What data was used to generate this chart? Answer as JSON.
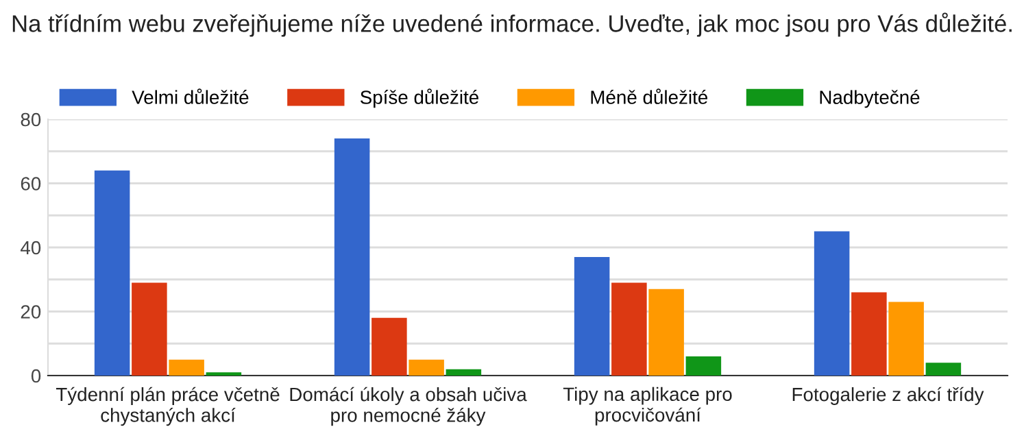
{
  "chart_data": {
    "type": "bar",
    "title": "Na třídním webu zveřejňujeme níže uvedené informace. Uveďte, jak moc jsou pro Vás důležité.",
    "categories": [
      "Týdenní plán práce včetně\nchystaných akcí",
      "Domácí úkoly a obsah učiva\npro nemocné žáky",
      "Tipy na aplikace pro\nprocvičování",
      "Fotogalerie z akcí třídy"
    ],
    "series": [
      {
        "name": "Velmi důležité",
        "color": "#3366cc",
        "values": [
          64,
          74,
          37,
          45
        ]
      },
      {
        "name": "Spíše důležité",
        "color": "#dc3912",
        "values": [
          29,
          18,
          29,
          26
        ]
      },
      {
        "name": "Méně důležité",
        "color": "#ff9900",
        "values": [
          5,
          5,
          27,
          23
        ]
      },
      {
        "name": "Nadbytečné",
        "color": "#109618",
        "values": [
          1,
          2,
          6,
          4
        ]
      }
    ],
    "ylim": [
      0,
      80
    ],
    "yticks": [
      0,
      {
        "value": 10,
        "label": null
      },
      20,
      {
        "value": 30,
        "label": null
      },
      40,
      {
        "value": 50,
        "label": null
      },
      60,
      {
        "value": 70,
        "label": null
      },
      80
    ],
    "grid": "y",
    "legend": "top left"
  }
}
